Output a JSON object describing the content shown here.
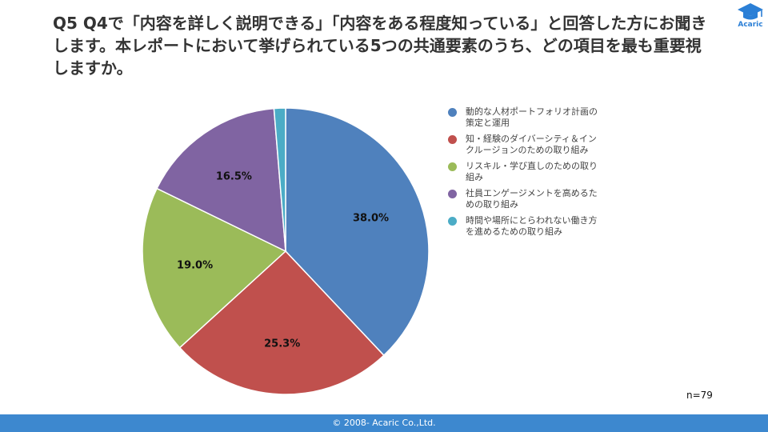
{
  "header": {
    "question": "Q5 Q4で「内容を詳しく説明できる」「内容をある程度知っている」と回答した方にお聞きします。本レポートにおいて挙げられている5つの共通要素のうち、どの項目を最も重要視しますか。",
    "logo_text": "Acaric",
    "logo_color": "#2b7fd6",
    "logo_icon": "graduation-cap-icon"
  },
  "chart_data": {
    "type": "pie",
    "title": "",
    "start": "top",
    "direction": "clockwise",
    "series": [
      {
        "name": "動的な人材ポートフォリオ計画の策定と運用",
        "value": 38.0,
        "label": "38.0%",
        "color": "#4f81bd"
      },
      {
        "name": "知・経験のダイバーシティ＆インクルージョンのための取り組み",
        "value": 25.3,
        "label": "25.3%",
        "color": "#c0504d"
      },
      {
        "name": "リスキル・学び直しのための取り組み",
        "value": 19.0,
        "label": "19.0%",
        "color": "#9bbb59"
      },
      {
        "name": "社員エンゲージメントを高めるための取り組み",
        "value": 16.5,
        "label": "16.5%",
        "color": "#8064a2"
      },
      {
        "name": "時間や場所にとらわれない働き方を進めるための取り組み",
        "value": 1.3,
        "label": "",
        "color": "#4bacc6"
      }
    ],
    "legend_position": "right",
    "legend": [
      {
        "line1": "動的な人材ポートフォリオ計画の",
        "line2": "策定と運用"
      },
      {
        "line1": "知・経験のダイバーシティ＆イン",
        "line2": "クルージョンのための取り組み"
      },
      {
        "line1": "リスキル・学び直しのための取り",
        "line2": "組み"
      },
      {
        "line1": "社員エンゲージメントを高めるた",
        "line2": "めの取り組み"
      },
      {
        "line1": "時間や場所にとらわれない働き方",
        "line2": "を進めるための取り組み"
      }
    ],
    "sample_size": "n=79"
  },
  "footer": {
    "copyright": "© 2008- Acaric Co.,Ltd.",
    "bar_color": "#3d88cf"
  }
}
